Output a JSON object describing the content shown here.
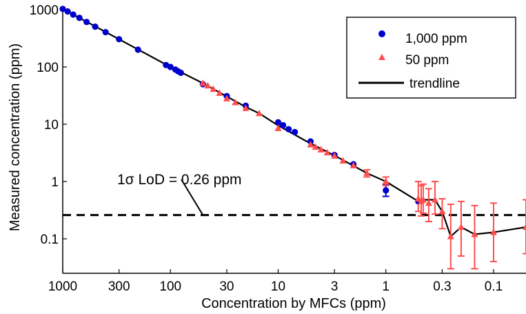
{
  "chart_data": {
    "type": "scatter",
    "title": "",
    "xlabel": "Concentration by MFCs (ppm)",
    "ylabel": "Measured concentration (ppm)",
    "x_scale": "log",
    "y_scale": "log",
    "x_reversed": true,
    "xlim": [
      1000,
      0.05
    ],
    "ylim": [
      0.025,
      1000
    ],
    "x_ticks": [
      1000,
      300,
      100,
      30,
      10,
      3,
      1,
      0.3,
      0.1
    ],
    "x_tick_labels": [
      "1000",
      "300",
      "100",
      "30",
      "10",
      "3",
      "1",
      "0.3",
      "0.1"
    ],
    "y_ticks": [
      0.1,
      1,
      10,
      100,
      1000
    ],
    "y_tick_labels": [
      "0.1",
      "1",
      "10",
      "100",
      "1000"
    ],
    "grid": false,
    "legend_position": "top-right",
    "legend": [
      {
        "label": "1,000 ppm",
        "marker": "circle",
        "color": "#0000cc"
      },
      {
        "label": "50 ppm",
        "marker": "triangle",
        "color": "#ff4d4d"
      },
      {
        "label": "trendline",
        "marker": "line",
        "color": "#000000"
      }
    ],
    "series": [
      {
        "name": "1,000 ppm",
        "marker": "circle",
        "color": "#0000cc",
        "points": [
          {
            "x": 1000,
            "y": 1030
          },
          {
            "x": 900,
            "y": 930
          },
          {
            "x": 800,
            "y": 820
          },
          {
            "x": 700,
            "y": 720
          },
          {
            "x": 600,
            "y": 610
          },
          {
            "x": 500,
            "y": 505
          },
          {
            "x": 400,
            "y": 405
          },
          {
            "x": 300,
            "y": 305
          },
          {
            "x": 200,
            "y": 200
          },
          {
            "x": 110,
            "y": 108
          },
          {
            "x": 100,
            "y": 100
          },
          {
            "x": 90,
            "y": 90
          },
          {
            "x": 85,
            "y": 84
          },
          {
            "x": 80,
            "y": 79
          },
          {
            "x": 50,
            "y": 50
          },
          {
            "x": 30,
            "y": 31
          },
          {
            "x": 20,
            "y": 21
          },
          {
            "x": 10,
            "y": 10.8
          },
          {
            "x": 9,
            "y": 9.6
          },
          {
            "x": 8,
            "y": 8.2
          },
          {
            "x": 7,
            "y": 7.3
          },
          {
            "x": 5,
            "y": 5.0
          },
          {
            "x": 3,
            "y": 2.9
          },
          {
            "x": 2,
            "y": 2.0
          },
          {
            "x": 1,
            "y": 0.7,
            "err_low": 0.55,
            "err_high": 0.9
          },
          {
            "x": 0.5,
            "y": 0.45
          }
        ]
      },
      {
        "name": "50 ppm",
        "marker": "triangle",
        "color": "#ff4d4d",
        "points": [
          {
            "x": 50,
            "y": 52
          },
          {
            "x": 45,
            "y": 47
          },
          {
            "x": 40,
            "y": 41
          },
          {
            "x": 35,
            "y": 35
          },
          {
            "x": 30,
            "y": 28
          },
          {
            "x": 25,
            "y": 24
          },
          {
            "x": 20,
            "y": 19
          },
          {
            "x": 15,
            "y": 15.5
          },
          {
            "x": 10,
            "y": 8.5
          },
          {
            "x": 5,
            "y": 4.4
          },
          {
            "x": 4.5,
            "y": 4.0
          },
          {
            "x": 4,
            "y": 3.6
          },
          {
            "x": 3.5,
            "y": 3.2
          },
          {
            "x": 3,
            "y": 2.8
          },
          {
            "x": 2.5,
            "y": 2.3
          },
          {
            "x": 2,
            "y": 1.9
          },
          {
            "x": 1.5,
            "y": 1.4,
            "err_low": 1.2,
            "err_high": 1.6
          },
          {
            "x": 1,
            "y": 1.0,
            "err_low": 0.85,
            "err_high": 1.2
          },
          {
            "x": 0.5,
            "y": 0.5,
            "err_low": 0.3,
            "err_high": 1.0
          },
          {
            "x": 0.47,
            "y": 0.45,
            "err_low": 0.25,
            "err_high": 0.85
          },
          {
            "x": 0.45,
            "y": 0.48,
            "err_low": 0.28,
            "err_high": 0.9
          },
          {
            "x": 0.4,
            "y": 0.42,
            "err_low": 0.2,
            "err_high": 0.75
          },
          {
            "x": 0.35,
            "y": 0.48,
            "err_low": 0.27,
            "err_high": 1.0
          },
          {
            "x": 0.3,
            "y": 0.3,
            "err_low": 0.15,
            "err_high": 0.5
          },
          {
            "x": 0.25,
            "y": 0.11,
            "err_low": 0.03,
            "err_high": 0.4
          },
          {
            "x": 0.2,
            "y": 0.16,
            "err_low": 0.05,
            "err_high": 0.45
          },
          {
            "x": 0.15,
            "y": 0.12,
            "err_low": 0.03,
            "err_high": 0.38
          },
          {
            "x": 0.1,
            "y": 0.13,
            "err_low": 0.04,
            "err_high": 0.42
          },
          {
            "x": 0.05,
            "y": 0.16,
            "err_low": 0.055,
            "err_high": 0.48
          }
        ]
      },
      {
        "name": "trendline",
        "marker": "line",
        "color": "#000000",
        "points": [
          {
            "x": 1000,
            "y": 1030
          },
          {
            "x": 100,
            "y": 100
          },
          {
            "x": 50,
            "y": 52
          },
          {
            "x": 20,
            "y": 20
          },
          {
            "x": 15,
            "y": 15.5
          },
          {
            "x": 10,
            "y": 9.5
          },
          {
            "x": 5,
            "y": 4.6
          },
          {
            "x": 3,
            "y": 2.85
          },
          {
            "x": 1.5,
            "y": 1.4
          },
          {
            "x": 1,
            "y": 1.0
          },
          {
            "x": 0.5,
            "y": 0.45
          },
          {
            "x": 0.45,
            "y": 0.48
          },
          {
            "x": 0.35,
            "y": 0.48
          },
          {
            "x": 0.3,
            "y": 0.3
          },
          {
            "x": 0.25,
            "y": 0.11
          },
          {
            "x": 0.2,
            "y": 0.16
          },
          {
            "x": 0.15,
            "y": 0.12
          },
          {
            "x": 0.1,
            "y": 0.13
          },
          {
            "x": 0.05,
            "y": 0.16
          }
        ]
      }
    ],
    "reference_lines": [
      {
        "axis": "y",
        "value": 0.26,
        "style": "dashed",
        "color": "#000000"
      }
    ],
    "annotations": [
      {
        "text": "1σ LoD = 0.26 ppm",
        "points_to": {
          "x": 50,
          "y": 0.26
        }
      }
    ]
  }
}
